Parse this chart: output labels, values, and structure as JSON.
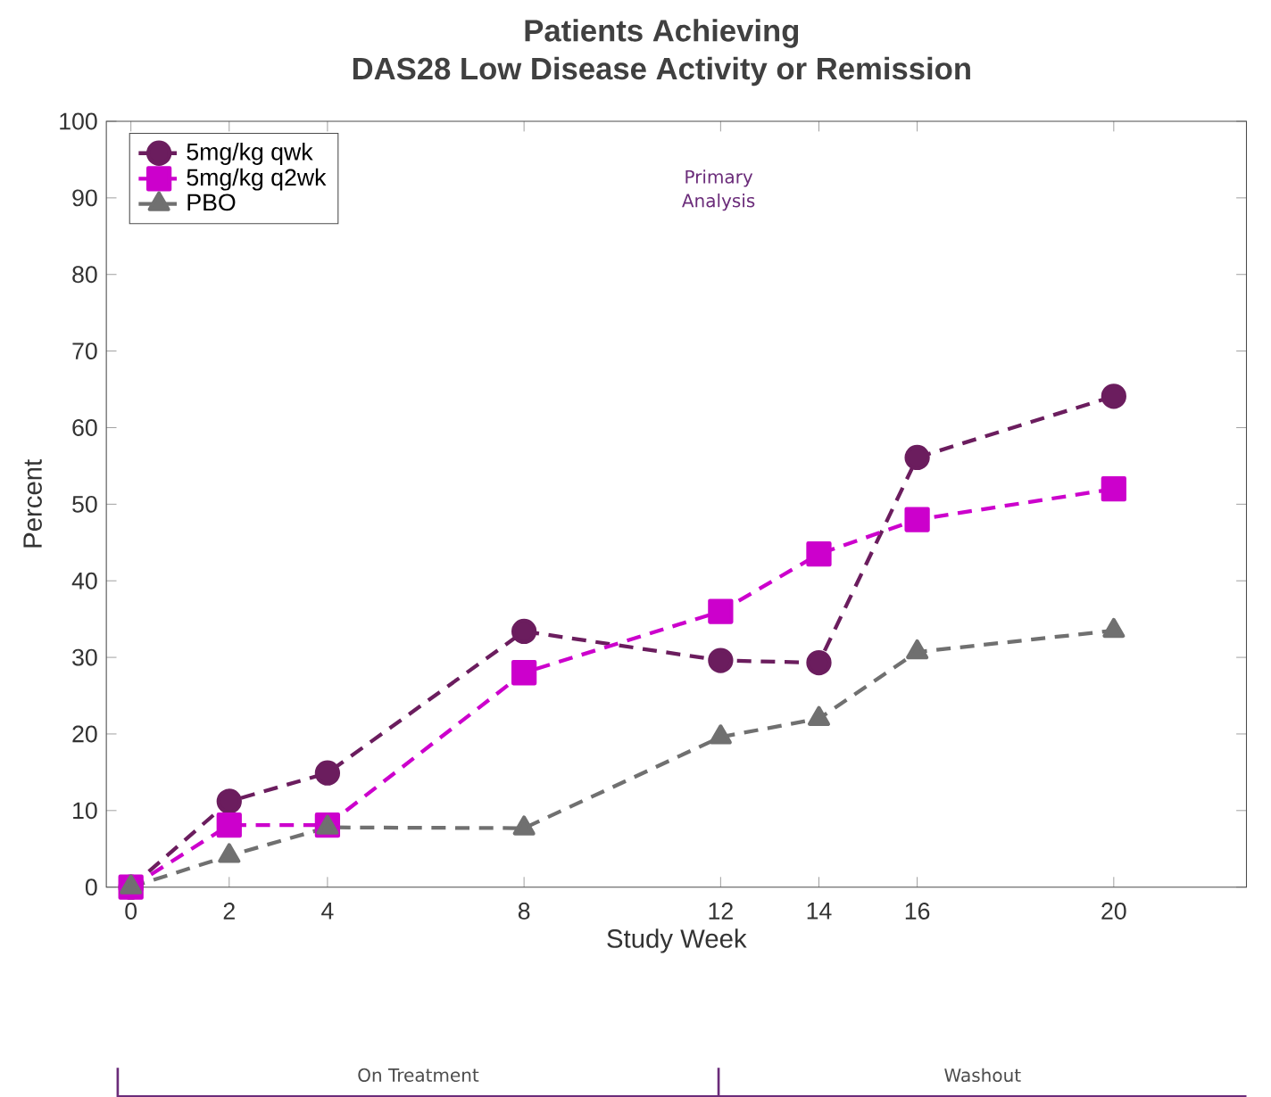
{
  "chart_data": {
    "type": "line",
    "title": "Patients Achieving\nDAS28 Low Disease Activity or Remission",
    "xlabel": "Study Week",
    "ylabel": "Percent",
    "x": [
      0,
      2,
      4,
      8,
      12,
      14,
      16,
      20
    ],
    "series": [
      {
        "name": "5mg/kg qwk",
        "color": "#6b1d5e",
        "marker": "circle",
        "values": [
          0,
          11.2,
          14.9,
          33.4,
          29.6,
          29.3,
          56.1,
          64.1
        ]
      },
      {
        "name": "5mg/kg q2wk",
        "color": "#cc00cc",
        "marker": "square",
        "values": [
          0,
          8.1,
          8.1,
          28,
          36,
          43.5,
          48,
          52
        ]
      },
      {
        "name": "PBO",
        "color": "#707070",
        "marker": "triangle",
        "values": [
          0,
          4.1,
          7.8,
          7.7,
          19.6,
          22,
          30.7,
          33.5
        ]
      }
    ],
    "line_style": "dashed",
    "xlim": [
      -0.5,
      22.7
    ],
    "xticks": [
      0,
      2,
      4,
      8,
      12,
      14,
      16,
      20
    ],
    "ylim": [
      0,
      100
    ],
    "yticks": [
      0,
      10,
      20,
      30,
      40,
      50,
      60,
      70,
      80,
      90,
      100
    ],
    "grid": false,
    "legend": "top left",
    "annotations": [
      "Primary Analysis",
      "On Treatment",
      "Washout"
    ]
  }
}
